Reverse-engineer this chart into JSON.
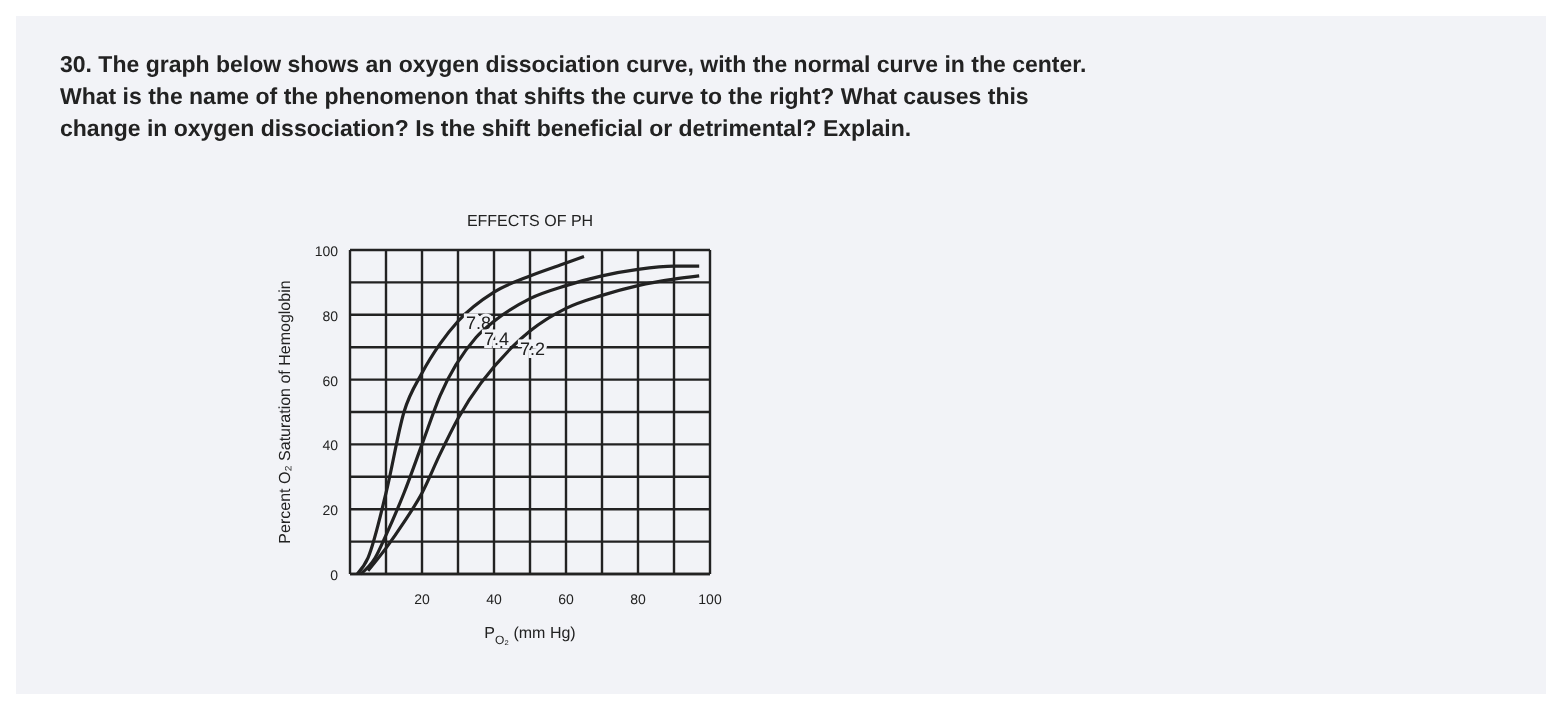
{
  "chart_data": {
    "type": "line",
    "title": "EFFECTS OF PH",
    "xlabel": "P$_{O₂}$ (mm Hg)",
    "ylabel": "Percent O₂ Saturation of Hemoglobin",
    "annotations": [
      "30. The graph below shows an oxygen dissociation curve, with the normal curve in the center.",
      "What is the name of the phenomenon that shifts the curve to the right? What causes this",
      "change in oxygen dissociation? Is the shift beneficial or detrimental? Explain."
    ],
    "series": [
      {
        "name": "7.8",
        "color": "#222222",
        "x": [
          2,
          5,
          10,
          15,
          20,
          25,
          30,
          40,
          50,
          60,
          65
        ],
        "values": [
          0,
          5,
          25,
          50,
          62,
          71,
          78,
          87,
          92,
          96,
          98
        ]
      },
      {
        "name": "7.4",
        "color": "#222222",
        "x": [
          3,
          7,
          10,
          15,
          20,
          25,
          35,
          40,
          50,
          60,
          70,
          80,
          90,
          97
        ],
        "values": [
          0,
          5,
          12,
          25,
          40,
          55,
          73,
          78,
          85,
          89,
          92,
          94,
          95,
          95
        ]
      },
      {
        "name": "7.2",
        "color": "#222222",
        "x": [
          5,
          10,
          15,
          20,
          25,
          30,
          45,
          50,
          60,
          70,
          80,
          90,
          97
        ],
        "values": [
          1,
          8,
          16,
          25,
          37,
          48,
          70,
          75,
          82,
          86,
          89,
          91,
          92
        ]
      }
    ],
    "xlim": [
      0,
      100
    ],
    "ylim": [
      0,
      100
    ],
    "xticks": [
      {
        "value": 10,
        "label": null
      },
      20,
      {
        "value": 30,
        "label": null
      },
      40,
      {
        "value": 50,
        "label": null
      },
      60,
      {
        "value": 70,
        "label": null
      },
      80,
      {
        "value": 90,
        "label": null
      },
      100
    ],
    "yticks": [
      0,
      {
        "value": 10,
        "label": null
      },
      20,
      {
        "value": 30,
        "label": null
      },
      40,
      {
        "value": 50,
        "label": null
      },
      60,
      {
        "value": 70,
        "label": null
      },
      80,
      {
        "value": 90,
        "label": null
      },
      100
    ],
    "grid": true,
    "line_style": "solid",
    "marker": "none"
  }
}
